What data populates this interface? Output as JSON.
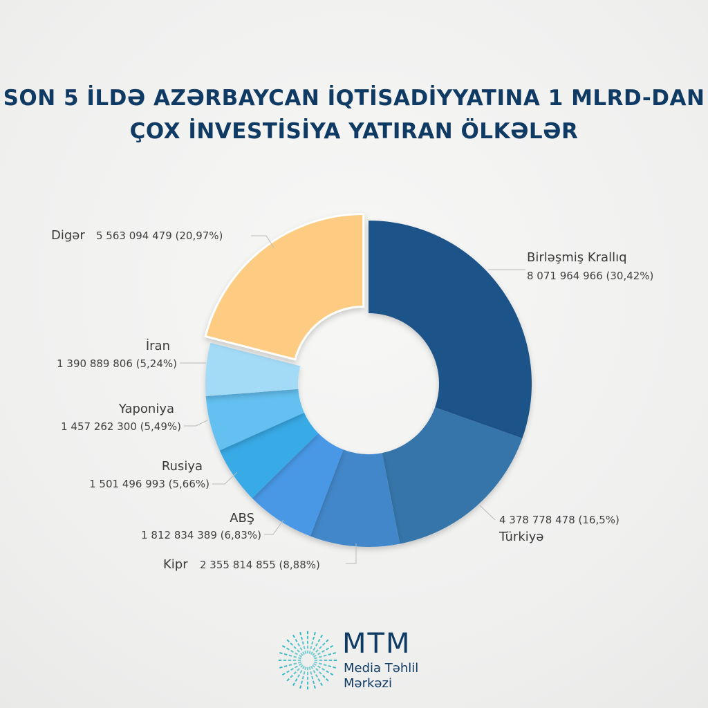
{
  "chart_data": {
    "type": "pie",
    "donut": true,
    "title_lines": [
      "SON 5 İLDƏ AZƏRBAYCAN İQTİSADİYYATINA 1 MLRD-DAN",
      "ÇOX İNVESTİSİYA YATIRAN ÖLKƏLƏR"
    ],
    "slices": [
      {
        "name": "Birləşmiş Krallıq",
        "value_text": "8 071 964 966 (30,42%)",
        "value": 8071964966,
        "percent": 30.42,
        "color": "#1c5289"
      },
      {
        "name": "Türkiyə",
        "value_text": "4 378 778 478 (16,5%)",
        "value": 4378778478,
        "percent": 16.5,
        "color": "#3574a9"
      },
      {
        "name": "Kipr",
        "value_text": "2 355 814 855 (8,88%)",
        "value": 2355814855,
        "percent": 8.88,
        "color": "#4387c9"
      },
      {
        "name": "ABŞ",
        "value_text": "1 812 834 389 (6,83%)",
        "value": 1812834389,
        "percent": 6.83,
        "color": "#4a98e6"
      },
      {
        "name": "Rusiya",
        "value_text": "1 501 496 993 (5,66%)",
        "value": 1501496993,
        "percent": 5.66,
        "color": "#38aae6"
      },
      {
        "name": "Yaponiya",
        "value_text": "1 457 262 300 (5,49%)",
        "value": 1457262300,
        "percent": 5.49,
        "color": "#63c0f0"
      },
      {
        "name": "İran",
        "value_text": "1 390 889 806 (5,24%)",
        "value": 1390889806,
        "percent": 5.24,
        "color": "#a3dbf7"
      },
      {
        "name": "Digər",
        "value_text": "5 563 094 479 (20,97%)",
        "value": 5563094479,
        "percent": 20.97,
        "color": "#fecb82"
      }
    ]
  },
  "logo": {
    "main": "MTM",
    "line1": "Media Təhlil",
    "line2": "Mərkəzi",
    "color": "#0f3a63",
    "accent": "#2cb6c0"
  }
}
